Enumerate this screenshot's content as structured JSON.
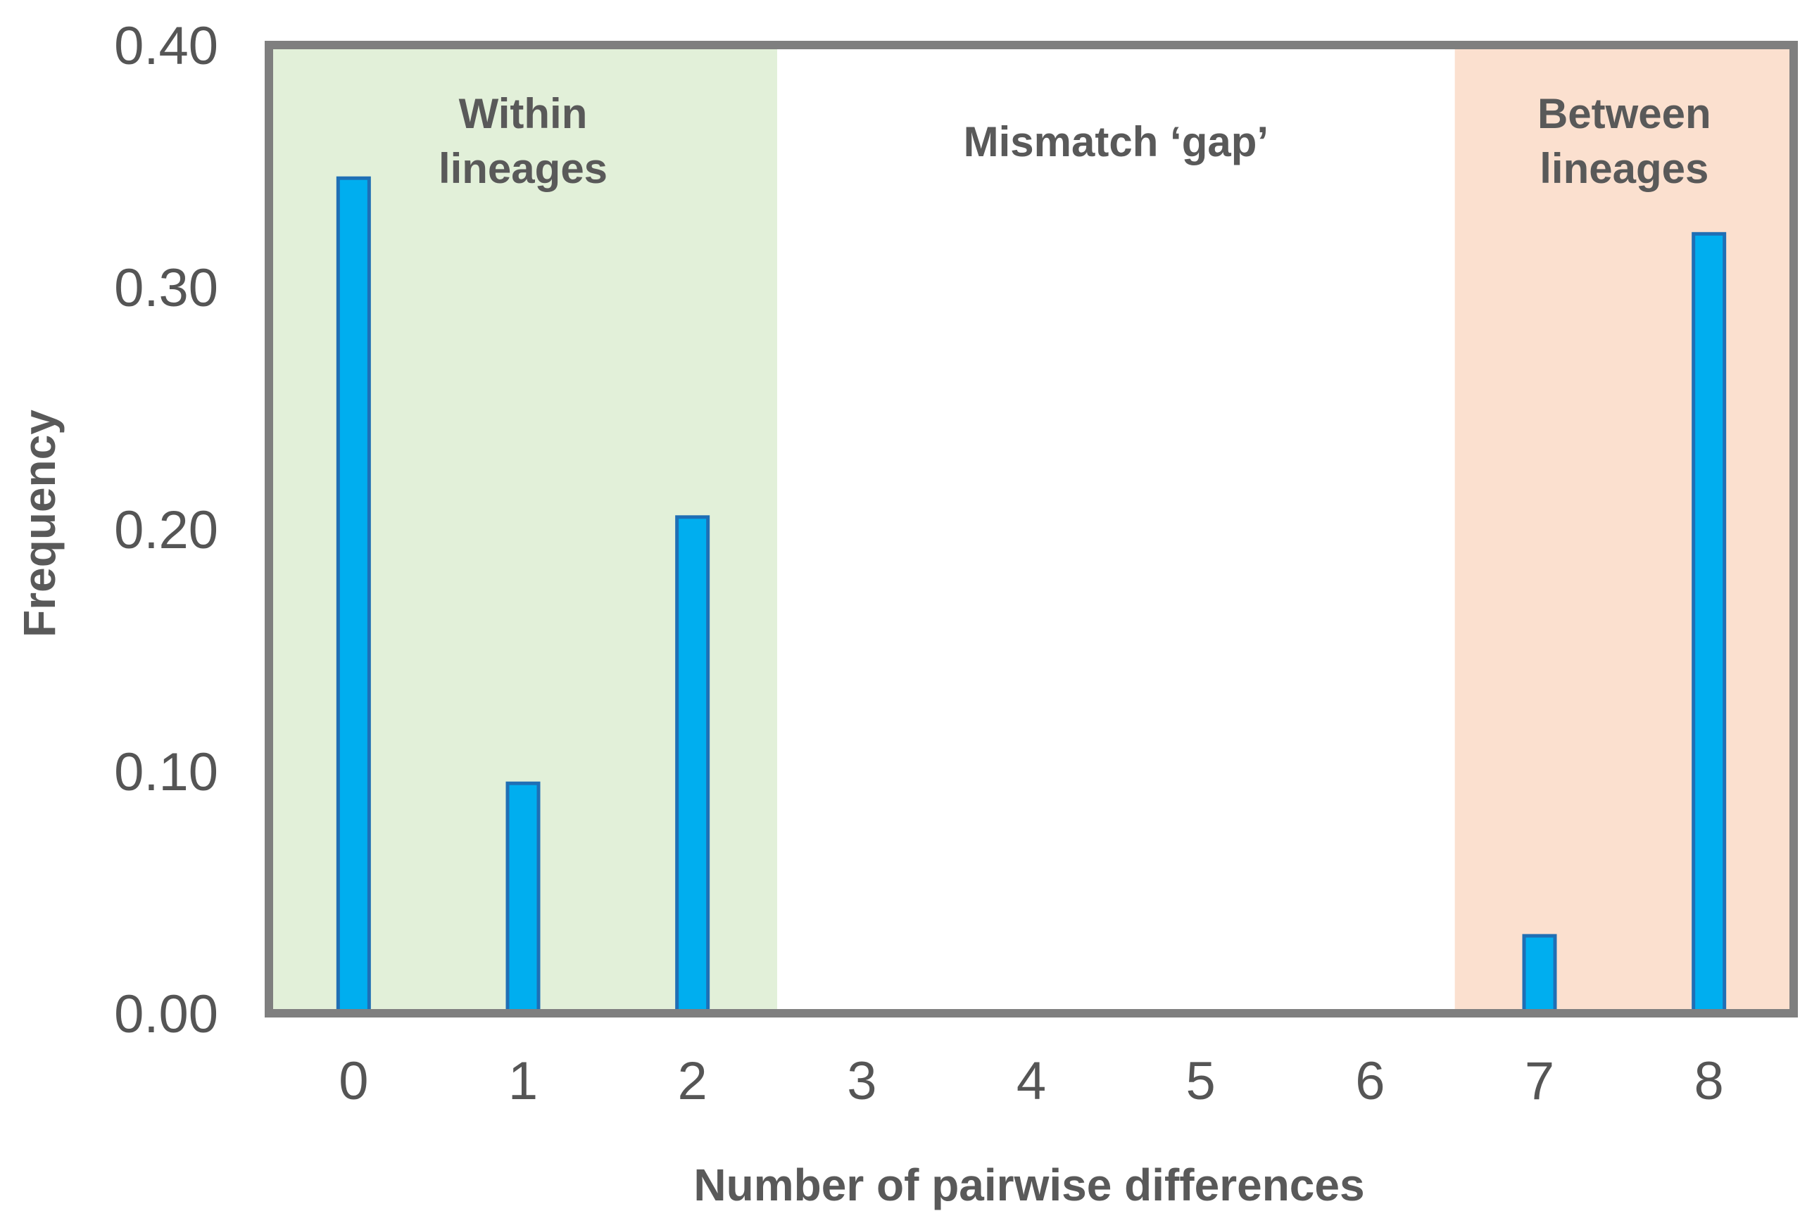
{
  "chart_data": {
    "type": "bar",
    "title": "",
    "xlabel": "Number of pairwise differences",
    "ylabel": "Frequency",
    "categories": [
      "0",
      "1",
      "2",
      "3",
      "4",
      "5",
      "6",
      "7",
      "8"
    ],
    "values": [
      0.345,
      0.095,
      0.205,
      0,
      0,
      0,
      0,
      0.032,
      0.322
    ],
    "ylim": [
      0,
      0.4
    ],
    "yticks": [
      "0.00",
      "0.10",
      "0.20",
      "0.30",
      "0.40"
    ],
    "ytick_values": [
      0,
      0.1,
      0.2,
      0.3,
      0.4
    ],
    "grid": false,
    "legend": "none",
    "regions": [
      {
        "name": "within",
        "line1": "Within",
        "line2": "lineages",
        "from": -0.5,
        "to": 2.5,
        "color": "#E2F0D9"
      },
      {
        "name": "gap",
        "line1": "Mismatch ‘gap’",
        "line2": "",
        "from": 2.5,
        "to": 6.5,
        "color": "#FFFFFF"
      },
      {
        "name": "between",
        "line1": "Between",
        "line2": "lineages",
        "from": 6.5,
        "to": 8.5,
        "color": "#FBE0CF"
      }
    ],
    "colors": {
      "bar_fill": "#00AEEF",
      "bar_edge": "#1F6FB5",
      "frame": "#7F7F7F",
      "text": "#595959"
    }
  }
}
